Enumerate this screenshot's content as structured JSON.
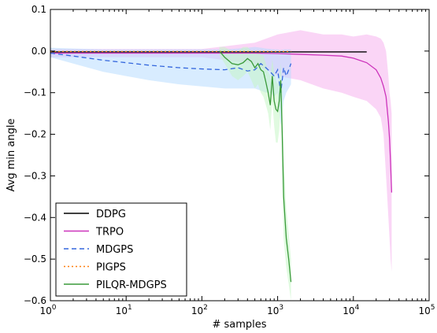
{
  "chart_data": {
    "type": "line",
    "xlabel": "# samples",
    "ylabel": "Avg min angle",
    "xscale": "log",
    "xlim": [
      1,
      100000
    ],
    "ylim": [
      -0.6,
      0.1
    ],
    "x_ticks": [
      1,
      10,
      100,
      1000,
      10000,
      100000
    ],
    "x_tick_labels": [
      {
        "base": "10",
        "exp": "0"
      },
      {
        "base": "10",
        "exp": "1"
      },
      {
        "base": "10",
        "exp": "2"
      },
      {
        "base": "10",
        "exp": "3"
      },
      {
        "base": "10",
        "exp": "4"
      },
      {
        "base": "10",
        "exp": "5"
      }
    ],
    "y_ticks": [
      0.1,
      0.0,
      -0.1,
      -0.2,
      -0.3,
      -0.4,
      -0.5,
      -0.6
    ],
    "y_tick_labels": [
      "0.1",
      "0.0",
      "−0.1",
      "−0.2",
      "−0.3",
      "−0.4",
      "−0.5",
      "−0.6"
    ],
    "grid": false,
    "legend_position": "lower-left",
    "series": [
      {
        "name": "DDPG",
        "color": "#000000",
        "dash": "solid",
        "x": [
          1,
          10,
          100,
          1000,
          15000
        ],
        "y": [
          -0.002,
          -0.002,
          -0.002,
          -0.002,
          -0.002
        ],
        "band": null
      },
      {
        "name": "TRPO",
        "color": "#cc33bb",
        "band_color": "#f5b3ee",
        "dash": "solid",
        "x": [
          1,
          10,
          100,
          500,
          1000,
          2000,
          4000,
          7000,
          10000,
          15000,
          20000,
          23000,
          25000,
          27000,
          29000,
          30000,
          31000,
          32000
        ],
        "y": [
          -0.005,
          -0.005,
          -0.005,
          -0.005,
          -0.006,
          -0.008,
          -0.01,
          -0.012,
          -0.017,
          -0.028,
          -0.045,
          -0.065,
          -0.085,
          -0.11,
          -0.17,
          -0.21,
          -0.27,
          -0.34
        ],
        "band": {
          "upper": [
            0.005,
            0.005,
            0.005,
            0.02,
            0.04,
            0.05,
            0.04,
            0.04,
            0.035,
            0.04,
            0.035,
            0.03,
            0.02,
            0.0,
            -0.06,
            -0.1,
            -0.12,
            -0.15
          ],
          "lower": [
            -0.015,
            -0.015,
            -0.015,
            -0.03,
            -0.06,
            -0.07,
            -0.09,
            -0.1,
            -0.11,
            -0.12,
            -0.14,
            -0.16,
            -0.2,
            -0.3,
            -0.4,
            -0.45,
            -0.5,
            -0.53
          ]
        }
      },
      {
        "name": "MDGPS",
        "color": "#3366dd",
        "band_color": "#b8dcff",
        "dash": "dashed",
        "x": [
          1,
          2,
          5,
          10,
          20,
          50,
          100,
          200,
          300,
          400,
          500,
          600,
          700,
          800,
          900,
          1000,
          1100,
          1200,
          1300,
          1400,
          1500
        ],
        "y": [
          -0.005,
          -0.012,
          -0.022,
          -0.028,
          -0.034,
          -0.04,
          -0.043,
          -0.045,
          -0.04,
          -0.048,
          -0.045,
          -0.03,
          -0.04,
          -0.05,
          -0.06,
          -0.045,
          -0.1,
          -0.04,
          -0.06,
          -0.045,
          -0.03
        ],
        "band": {
          "upper": [
            0.008,
            0.006,
            0.004,
            0.004,
            0.004,
            0.004,
            0.004,
            0.004,
            0.006,
            0.008,
            0.01,
            0.008,
            0.006,
            0.005,
            0.004,
            0.004,
            0.002,
            0.004,
            0.004,
            0.004,
            0.004
          ],
          "lower": [
            -0.015,
            -0.03,
            -0.05,
            -0.06,
            -0.07,
            -0.08,
            -0.085,
            -0.09,
            -0.09,
            -0.09,
            -0.09,
            -0.095,
            -0.1,
            -0.1,
            -0.11,
            -0.1,
            -0.18,
            -0.12,
            -0.1,
            -0.09,
            -0.08
          ]
        }
      },
      {
        "name": "PIGPS",
        "color": "#ff7f0e",
        "dash": "dotted",
        "x": [
          1,
          10,
          100,
          1000,
          1500
        ],
        "y": [
          -0.001,
          -0.001,
          -0.001,
          -0.001,
          -0.001
        ],
        "band": null
      },
      {
        "name": "PILQR-MDGPS",
        "color": "#3a9a3a",
        "band_color": "#c6f5c6",
        "dash": "solid",
        "x": [
          170,
          200,
          250,
          300,
          350,
          400,
          450,
          500,
          550,
          600,
          650,
          700,
          750,
          800,
          850,
          900,
          950,
          1000,
          1050,
          1100,
          1150,
          1200,
          1300,
          1400,
          1500
        ],
        "y": [
          0.0,
          -0.015,
          -0.03,
          -0.033,
          -0.028,
          -0.018,
          -0.025,
          -0.04,
          -0.03,
          -0.045,
          -0.05,
          -0.075,
          -0.1,
          -0.13,
          -0.06,
          -0.12,
          -0.14,
          -0.145,
          -0.12,
          -0.07,
          -0.2,
          -0.35,
          -0.45,
          -0.5,
          -0.555
        ],
        "band": {
          "upper": [
            0.01,
            0.01,
            0.0,
            0.0,
            0.01,
            0.01,
            0.0,
            -0.005,
            0.0,
            -0.01,
            -0.01,
            -0.03,
            -0.05,
            -0.06,
            -0.02,
            -0.05,
            -0.07,
            -0.08,
            -0.06,
            -0.03,
            -0.1,
            -0.25,
            -0.38,
            -0.44,
            -0.5
          ],
          "lower": [
            -0.01,
            -0.03,
            -0.06,
            -0.07,
            -0.06,
            -0.05,
            -0.07,
            -0.09,
            -0.08,
            -0.1,
            -0.11,
            -0.13,
            -0.15,
            -0.19,
            -0.12,
            -0.18,
            -0.22,
            -0.22,
            -0.19,
            -0.12,
            -0.3,
            -0.45,
            -0.52,
            -0.56,
            -0.6
          ]
        }
      }
    ]
  }
}
